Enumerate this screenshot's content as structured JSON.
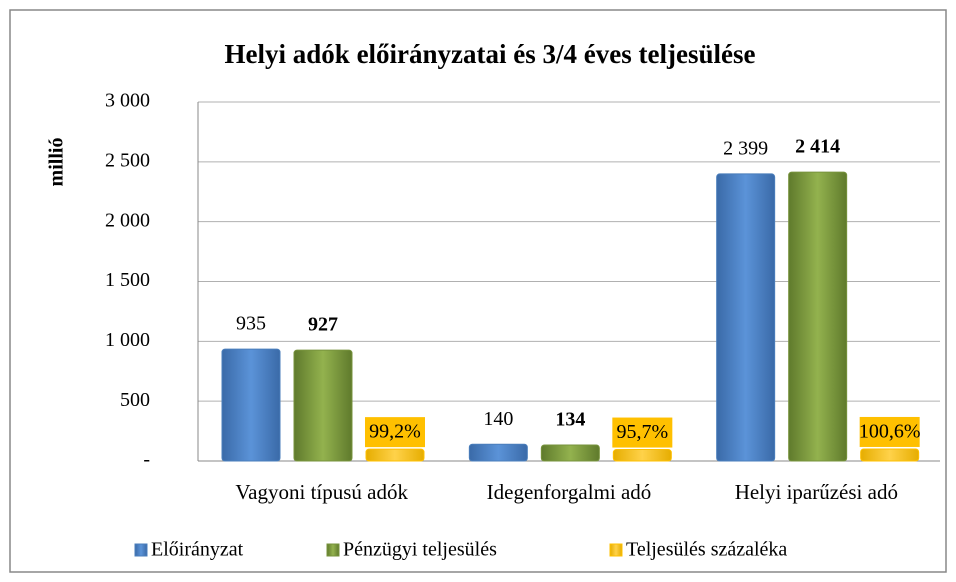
{
  "chart_data": {
    "type": "bar",
    "title": "Helyi adók előirányzatai és 3/4 éves teljesülése",
    "y_label": "millió",
    "categories": [
      "Vagyoni típusú adók",
      "Idegenforgalmi adó",
      "Helyi iparűzési adó"
    ],
    "series": [
      {
        "name": "Előirányzat",
        "color": "#4a7ebb",
        "values": [
          935,
          140,
          2399
        ],
        "value_labels": [
          "935",
          "140",
          "2 399"
        ]
      },
      {
        "name": "Pénzügyi teljesülés",
        "color": "#77933c",
        "values": [
          927,
          134,
          2414
        ],
        "value_labels": [
          "927",
          "134",
          "2 414"
        ]
      },
      {
        "name": "Teljesülés százaléka",
        "color": "#ffc000",
        "values": [
          99.2,
          95.7,
          100.6
        ],
        "value_labels": [
          "99,2%",
          "95,7%",
          "100,6%"
        ]
      }
    ],
    "ylim": [
      0,
      3000
    ],
    "yticks": [
      {
        "value": 0,
        "label": "-"
      },
      500,
      {
        "value": 1000,
        "label": "1 000"
      },
      {
        "value": 1500,
        "label": "1 500"
      },
      {
        "value": 2000,
        "label": "2 000"
      },
      {
        "value": 2500,
        "label": "2 500"
      },
      {
        "value": 3000,
        "label": "3 000"
      }
    ],
    "grid": true,
    "legend": "bottom"
  }
}
